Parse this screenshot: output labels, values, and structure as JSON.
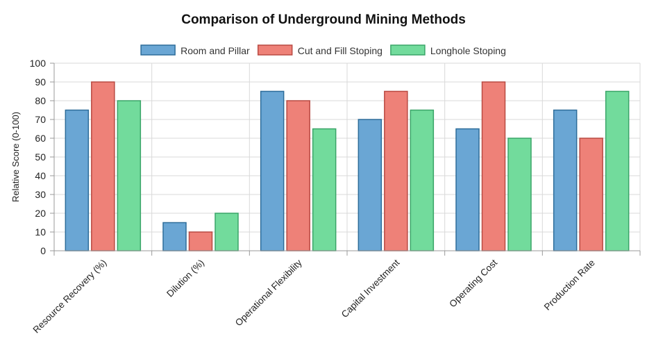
{
  "chart_data": {
    "type": "bar",
    "title": "Comparison of Underground Mining Methods",
    "xlabel": "",
    "ylabel": "Relative Score (0-100)",
    "ylim": [
      0,
      100
    ],
    "yticks": [
      0,
      10,
      20,
      30,
      40,
      50,
      60,
      70,
      80,
      90,
      100
    ],
    "grid": true,
    "legend_position": "top-center",
    "categories": [
      "Resource Recovery (%)",
      "Dilution (%)",
      "Operational Flexibility",
      "Capital Investment",
      "Operating Cost",
      "Production Rate"
    ],
    "series": [
      {
        "name": "Room and Pillar",
        "values": [
          75,
          15,
          85,
          70,
          65,
          75
        ],
        "color": "#5b9bd5",
        "fill": "#6aa6d4",
        "stroke": "#2e6d9a"
      },
      {
        "name": "Cut and Fill Stoping",
        "values": [
          90,
          10,
          80,
          85,
          90,
          60
        ],
        "color": "#ec7b72",
        "fill": "#ee8178",
        "stroke": "#b94a42"
      },
      {
        "name": "Longhole Stoping",
        "values": [
          80,
          20,
          65,
          75,
          60,
          85
        ],
        "color": "#6fd99a",
        "fill": "#72db9c",
        "stroke": "#3aa568"
      }
    ]
  }
}
